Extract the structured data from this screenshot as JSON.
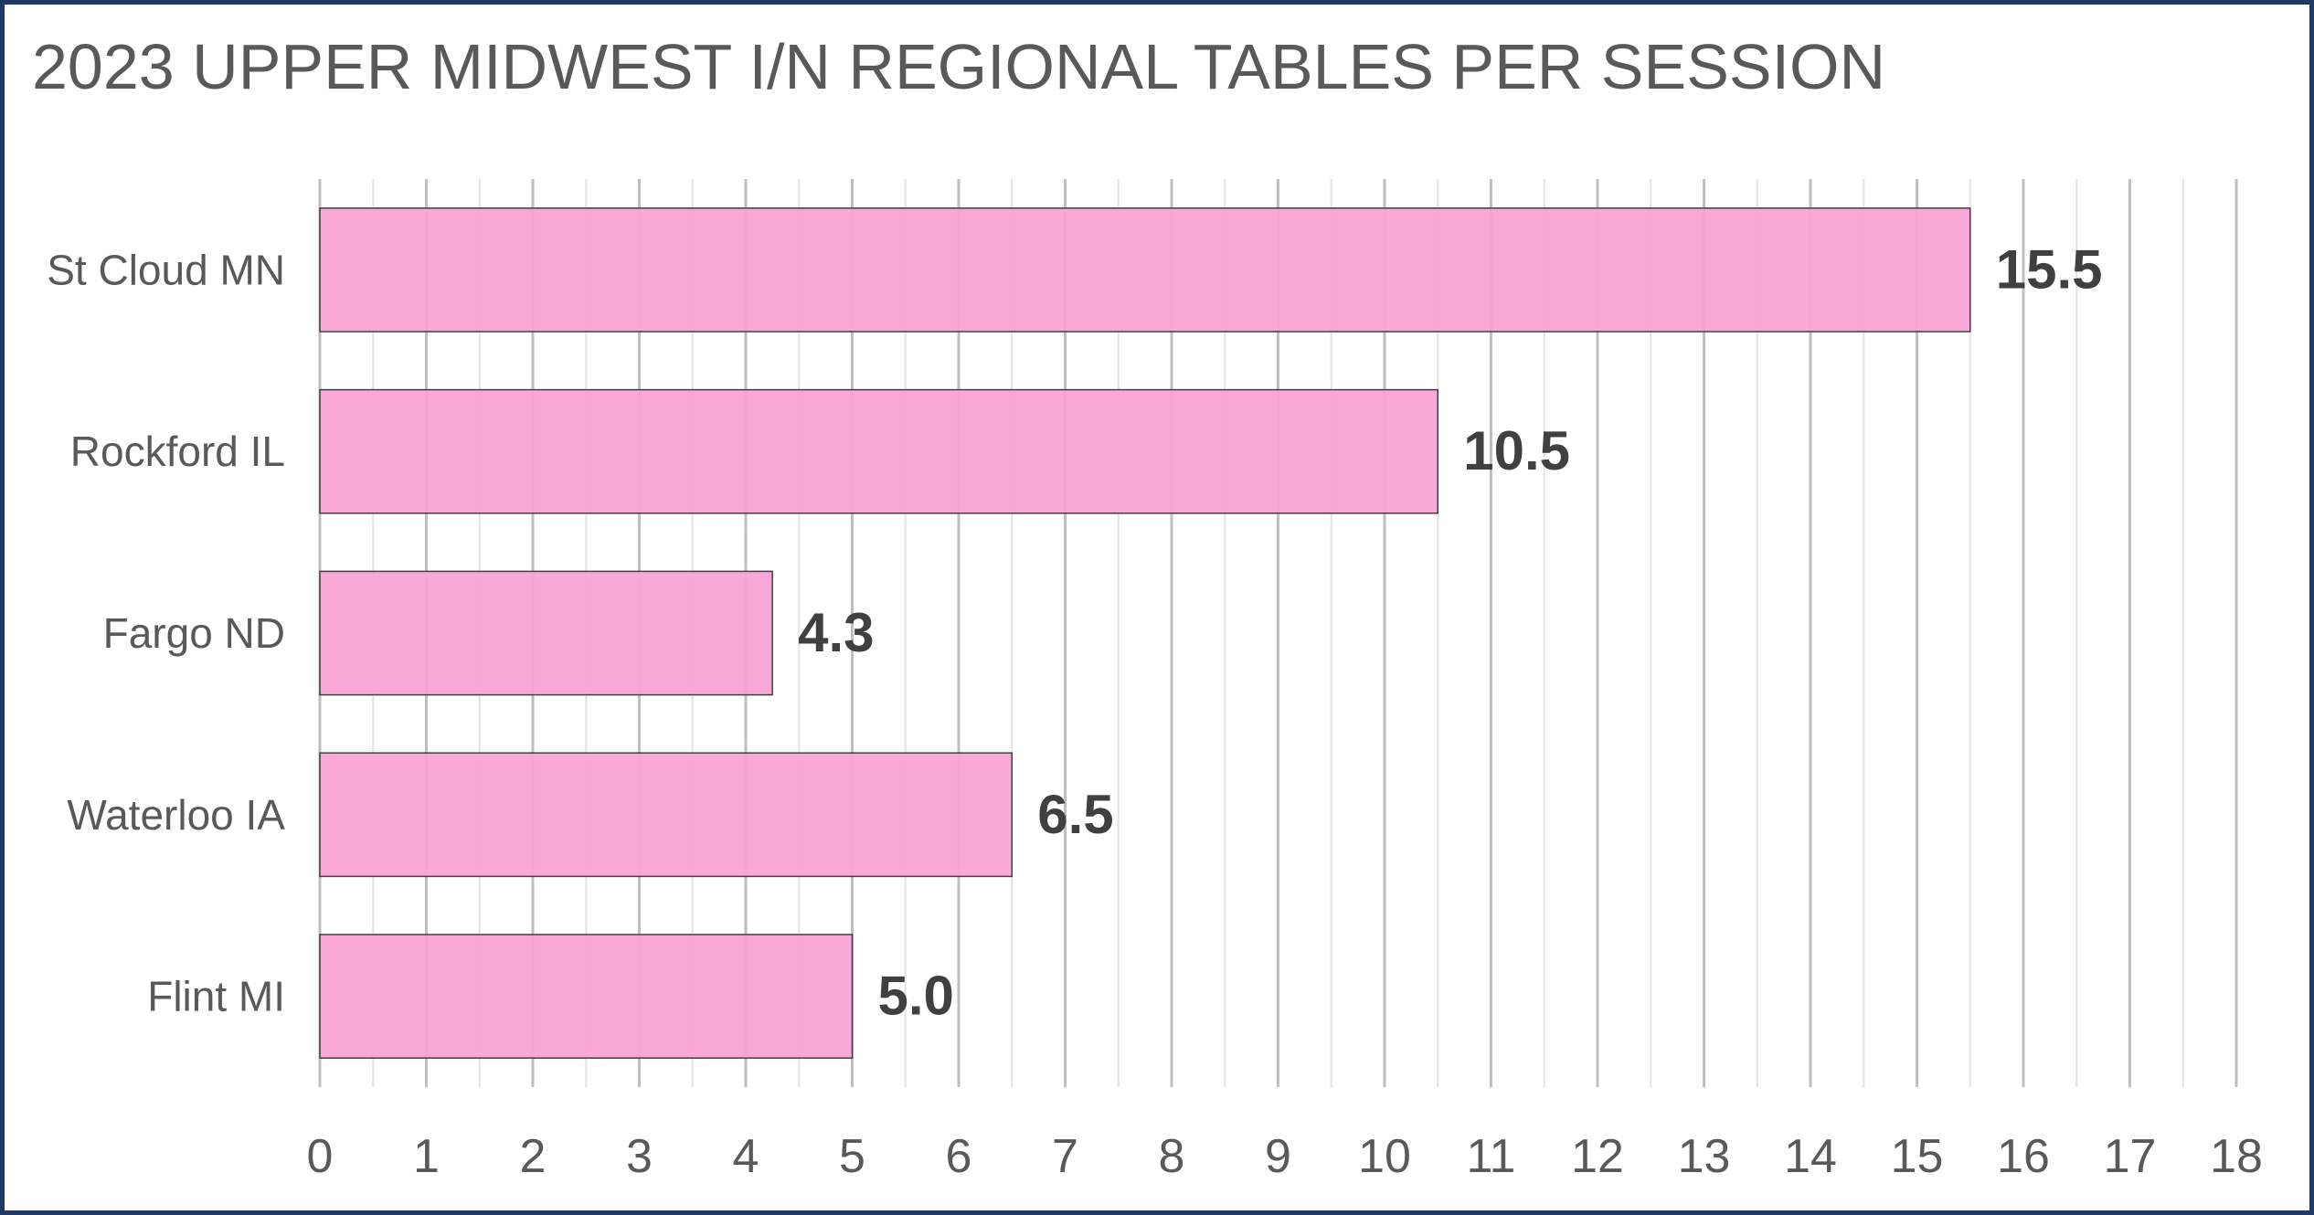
{
  "chart_data": {
    "type": "bar",
    "orientation": "horizontal",
    "title": "2023 UPPER MIDWEST I/N REGIONAL TABLES PER SESSION",
    "xlabel": "",
    "ylabel": "",
    "categories": [
      "St Cloud MN",
      "Rockford IL",
      "Fargo ND",
      "Waterloo IA",
      "Flint MI"
    ],
    "values": [
      15.5,
      10.5,
      4.25,
      6.5,
      5.0
    ],
    "value_labels": [
      "15.5",
      "10.5",
      "4.3",
      "6.5",
      "5.0"
    ],
    "xlim": [
      0,
      18
    ],
    "x_ticks": [
      "0",
      "1",
      "2",
      "3",
      "4",
      "5",
      "6",
      "7",
      "8",
      "9",
      "10",
      "11",
      "12",
      "13",
      "14",
      "15",
      "16",
      "17",
      "18"
    ],
    "grid": "vertical",
    "legend": "none",
    "colors": {
      "bar_fill": "#f9a3d6",
      "bar_stroke": "#404040",
      "grid_major": "#bfbfbf",
      "grid_minor": "#e3e3e3",
      "frame": "#1f3864",
      "text": "#595959",
      "value_text": "#404040"
    }
  }
}
